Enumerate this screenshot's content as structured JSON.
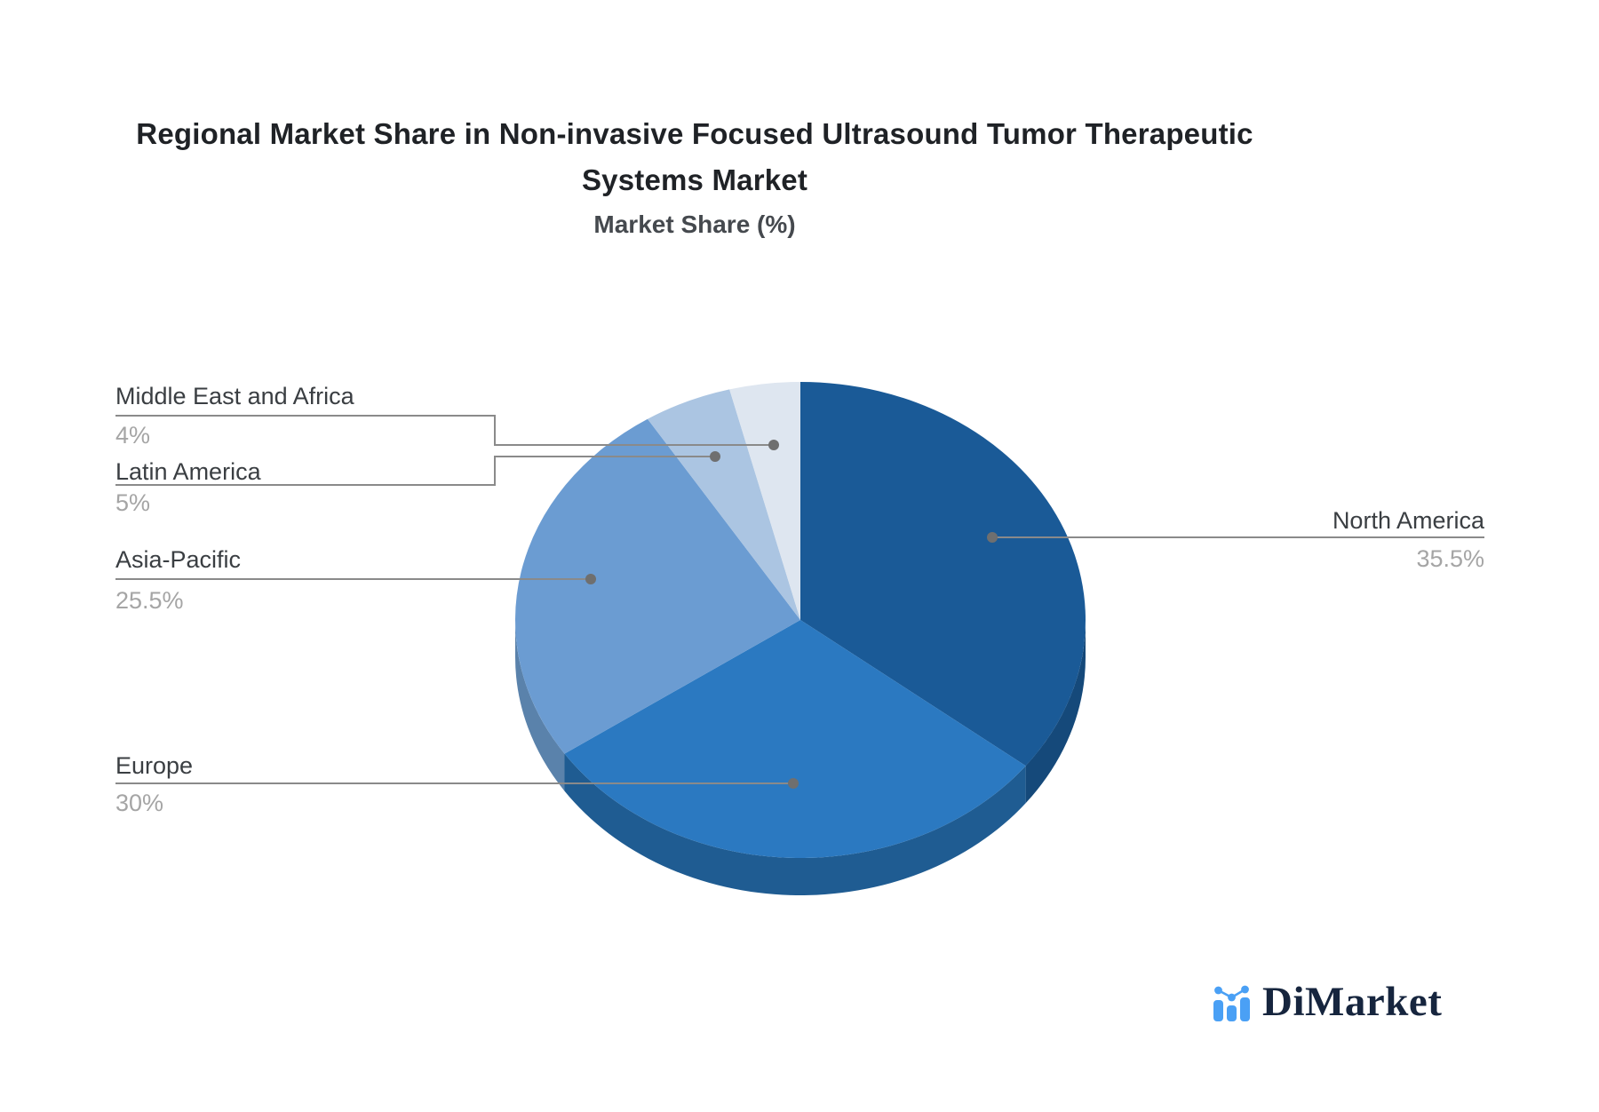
{
  "title": {
    "line1": "Regional Market Share in Non-invasive Focused Ultrasound Tumor Therapeutic",
    "line2": "Systems Market"
  },
  "subtitle": "Market Share (%)",
  "chart_data": {
    "type": "pie",
    "title": "Regional Market Share in Non-invasive Focused Ultrasound Tumor Therapeutic Systems Market",
    "subtitle": "Market Share (%)",
    "unit": "%",
    "style": "3d",
    "direction": "clockwise",
    "start_angle_deg": 0,
    "legend": "callout-labels",
    "categories": [
      "North America",
      "Europe",
      "Asia-Pacific",
      "Latin America",
      "Middle East and Africa"
    ],
    "values": [
      35.5,
      30,
      25.5,
      5,
      4
    ],
    "colors": [
      "#1a5a97",
      "#2b79c1",
      "#6b9cd2",
      "#abc5e2",
      "#dee6f0"
    ],
    "side_colors": [
      "#15497a",
      "#1f5c92",
      "#5a82ab",
      "#93aecb",
      "#c2cddb"
    ],
    "leader_line_color": "#8a8a8a",
    "leader_dot_color": "#6f6f6f"
  },
  "slices": [
    {
      "label": "North America",
      "value_label": "35.5%"
    },
    {
      "label": "Europe",
      "value_label": "30%"
    },
    {
      "label": "Asia-Pacific",
      "value_label": "25.5%"
    },
    {
      "label": "Latin America",
      "value_label": "5%"
    },
    {
      "label": "Middle East and Africa",
      "value_label": "4%"
    }
  ],
  "logo": {
    "text": "DiMarket",
    "icon": "bar-chart-trend-icon",
    "icon_color": "#4aa0f5",
    "text_color": "#16253e"
  }
}
